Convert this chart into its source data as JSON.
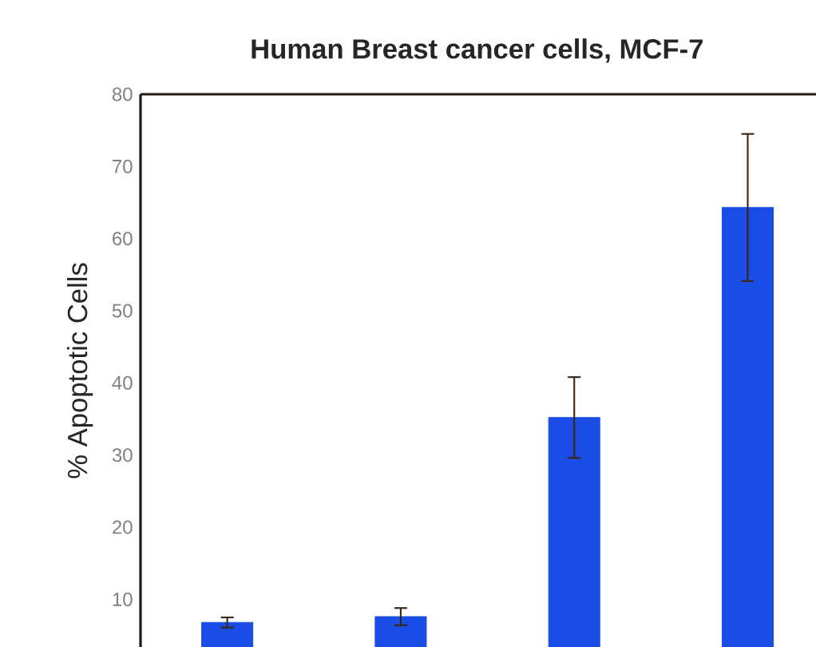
{
  "chart_data": {
    "type": "bar",
    "title": "Human Breast cancer cells, MCF-7",
    "ylabel": "% Apoptotic Cells",
    "categories": [
      null,
      null,
      null,
      null
    ],
    "values": [
      6.8,
      7.6,
      35.2,
      64.3
    ],
    "errors": [
      0.7,
      1.2,
      5.6,
      10.2
    ],
    "color": "#1a4de6",
    "ylim": [
      3.4,
      80
    ],
    "yticks": [
      10,
      20,
      30,
      40,
      50,
      60,
      70,
      80
    ]
  }
}
